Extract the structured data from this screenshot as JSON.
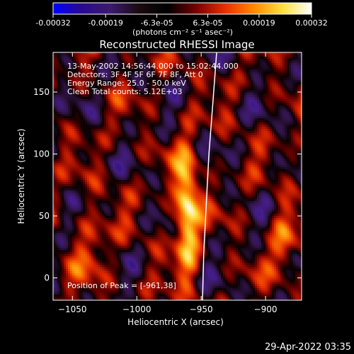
{
  "colorbar": {
    "colors": [
      "#0000ff",
      "#2a0a8c",
      "#3c1a6e",
      "#1a0a10",
      "#000000",
      "#7a0000",
      "#e83000",
      "#ff8a00",
      "#ffe040",
      "#ffffff"
    ],
    "tick_labels": [
      "-0.00032",
      "-0.00019",
      "-6.3e-05",
      "6.3e-05",
      "0.00019",
      "0.00032"
    ],
    "unit_label": "(photons cm⁻² s⁻¹ asec⁻²)"
  },
  "chart_data": {
    "type": "heatmap",
    "title": "Reconstructed RHESSI Image",
    "xlabel": "Heliocentric X (arcsec)",
    "ylabel": "Heliocentric Y (arcsec)",
    "xlim": [
      -1065,
      -872
    ],
    "ylim": [
      -18,
      182
    ],
    "xticks": [
      -1050,
      -1000,
      -950,
      -900
    ],
    "yticks": [
      0,
      50,
      100,
      150
    ],
    "xtick_labels": [
      "−1050",
      "−1000",
      "−950",
      "−900"
    ],
    "ytick_labels": [
      "0",
      "50",
      "100",
      "150"
    ],
    "value_range": [
      -0.00032,
      0.00032
    ],
    "peak": [
      -961,
      38
    ],
    "limb_curve": [
      [
        -949,
        -18
      ],
      [
        -948,
        20
      ],
      [
        -946,
        60
      ],
      [
        -944,
        100
      ],
      [
        -941,
        140
      ],
      [
        -938,
        182
      ]
    ],
    "info_lines": [
      "13-May-2002 14:56:44.000 to 15:02:44.000",
      "Detectors: 3F 4F 5F 6F 7F 8F, Att 0",
      "Energy Range: 25.0 - 50.0 keV",
      "Clean     Total counts: 5.12E+03"
    ],
    "peak_label": "Position of Peak = [-961,38]"
  },
  "footer": {
    "timestamp": "29-Apr-2022 03:35"
  }
}
